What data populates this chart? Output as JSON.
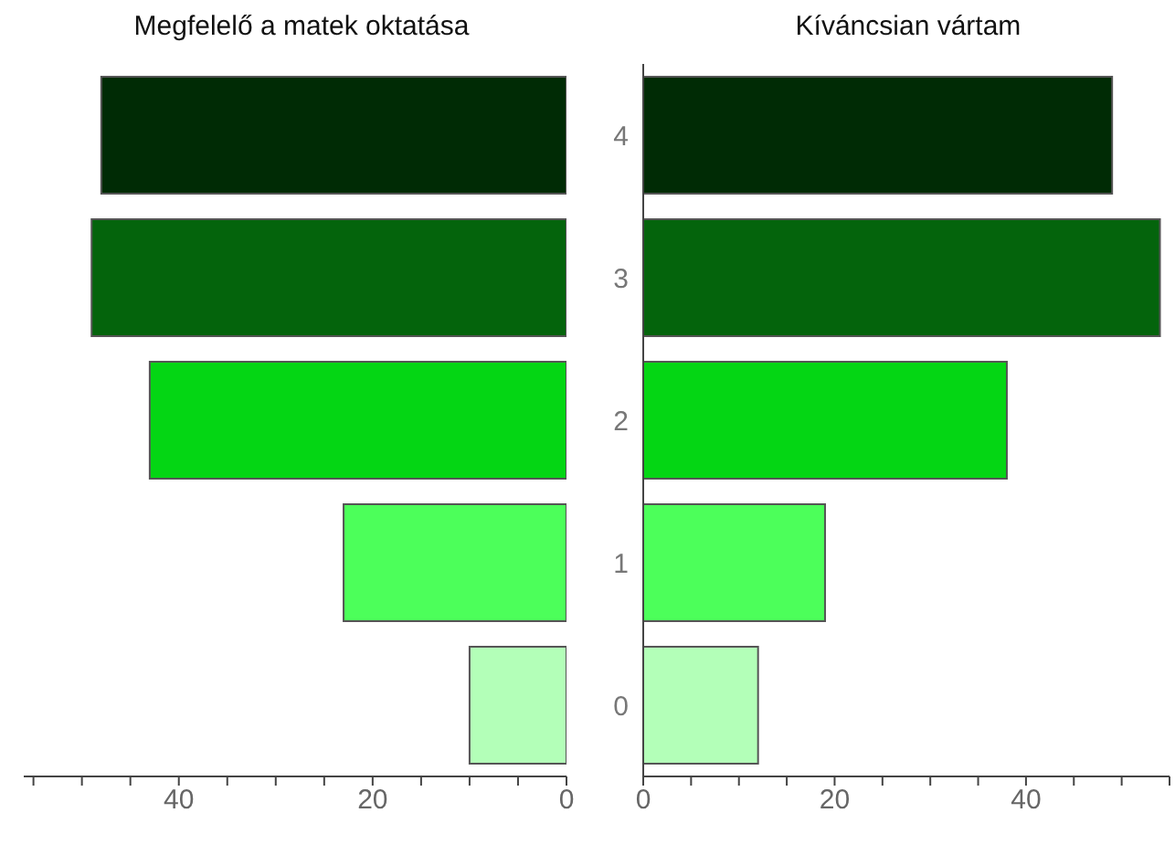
{
  "chart_data": [
    {
      "type": "bar",
      "orientation": "horizontal",
      "title": "Megfelelő a matek oktatása",
      "categories": [
        "4",
        "3",
        "2",
        "1",
        "0"
      ],
      "values": [
        48,
        49,
        43,
        23,
        10
      ],
      "colors": [
        "#002b05",
        "#04640c",
        "#04d614",
        "#4cff5a",
        "#b3ffb8"
      ],
      "xlim": [
        56,
        0
      ],
      "xticks": [
        {
          "value": 55,
          "label": null
        },
        {
          "value": 50,
          "label": null
        },
        {
          "value": 45,
          "label": null
        },
        40,
        {
          "value": 35,
          "label": null
        },
        {
          "value": 30,
          "label": null
        },
        {
          "value": 25,
          "label": null
        },
        20,
        {
          "value": 15,
          "label": null
        },
        {
          "value": 10,
          "label": null
        },
        {
          "value": 5,
          "label": null
        },
        0
      ],
      "tick_labels": "x"
    },
    {
      "type": "bar",
      "orientation": "horizontal",
      "title": "Kíváncsian vártam",
      "categories": [
        "4",
        "3",
        "2",
        "1",
        "0"
      ],
      "values": [
        49,
        54,
        38,
        19,
        12
      ],
      "colors": [
        "#002b05",
        "#04640c",
        "#04d614",
        "#4cff5a",
        "#b3ffb8"
      ],
      "xlim": [
        0,
        55
      ],
      "xticks": [
        0,
        {
          "value": 5,
          "label": null
        },
        {
          "value": 10,
          "label": null
        },
        {
          "value": 15,
          "label": null
        },
        20,
        {
          "value": 25,
          "label": null
        },
        {
          "value": 30,
          "label": null
        },
        {
          "value": 35,
          "label": null
        },
        40,
        {
          "value": 45,
          "label": null
        },
        {
          "value": 50,
          "label": null
        },
        {
          "value": 55,
          "label": null
        }
      ]
    }
  ]
}
